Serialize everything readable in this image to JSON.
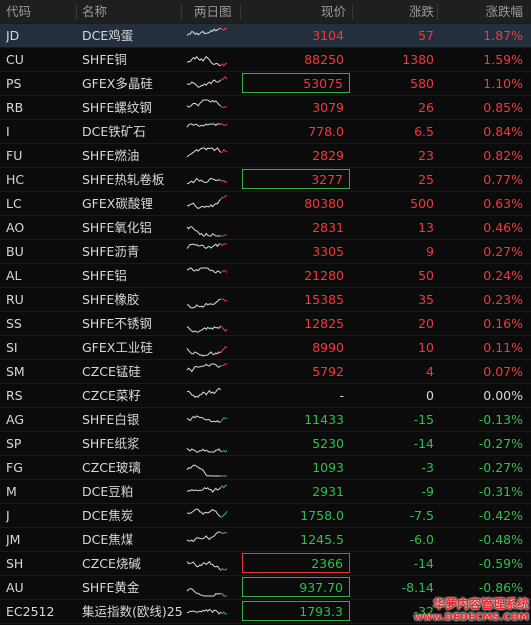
{
  "header": {
    "code": "代码",
    "name": "名称",
    "spark": "两日图",
    "price": "现价",
    "change": "涨跌",
    "pct": "涨跌幅"
  },
  "colors": {
    "up": "#f0393b",
    "down": "#2fbf4a",
    "flat": "#d8d8d8",
    "selected_row": "#232f3d"
  },
  "rows": [
    {
      "code": "JD",
      "name": "DCE鸡蛋",
      "price": "3104",
      "change": "57",
      "pct": "1.87%",
      "dir": "up",
      "selected": true
    },
    {
      "code": "CU",
      "name": "SHFE铜",
      "price": "88250",
      "change": "1380",
      "pct": "1.59%",
      "dir": "up"
    },
    {
      "code": "PS",
      "name": "GFEX多晶硅",
      "price": "53075",
      "change": "580",
      "pct": "1.10%",
      "dir": "up",
      "box": "green"
    },
    {
      "code": "RB",
      "name": "SHFE螺纹钢",
      "price": "3079",
      "change": "26",
      "pct": "0.85%",
      "dir": "up"
    },
    {
      "code": "I",
      "name": "DCE铁矿石",
      "price": "778.0",
      "change": "6.5",
      "pct": "0.84%",
      "dir": "up"
    },
    {
      "code": "FU",
      "name": "SHFE燃油",
      "price": "2829",
      "change": "23",
      "pct": "0.82%",
      "dir": "up"
    },
    {
      "code": "HC",
      "name": "SHFE热轧卷板",
      "price": "3277",
      "change": "25",
      "pct": "0.77%",
      "dir": "up",
      "box": "green"
    },
    {
      "code": "LC",
      "name": "GFEX碳酸锂",
      "price": "80380",
      "change": "500",
      "pct": "0.63%",
      "dir": "up"
    },
    {
      "code": "AO",
      "name": "SHFE氧化铝",
      "price": "2831",
      "change": "13",
      "pct": "0.46%",
      "dir": "up"
    },
    {
      "code": "BU",
      "name": "SHFE沥青",
      "price": "3305",
      "change": "9",
      "pct": "0.27%",
      "dir": "up"
    },
    {
      "code": "AL",
      "name": "SHFE铝",
      "price": "21280",
      "change": "50",
      "pct": "0.24%",
      "dir": "up"
    },
    {
      "code": "RU",
      "name": "SHFE橡胶",
      "price": "15385",
      "change": "35",
      "pct": "0.23%",
      "dir": "up"
    },
    {
      "code": "SS",
      "name": "SHFE不锈钢",
      "price": "12825",
      "change": "20",
      "pct": "0.16%",
      "dir": "up"
    },
    {
      "code": "SI",
      "name": "GFEX工业硅",
      "price": "8990",
      "change": "10",
      "pct": "0.11%",
      "dir": "up"
    },
    {
      "code": "SM",
      "name": "CZCE锰硅",
      "price": "5792",
      "change": "4",
      "pct": "0.07%",
      "dir": "up"
    },
    {
      "code": "RS",
      "name": "CZCE菜籽",
      "price": "-",
      "change": "0",
      "pct": "0.00%",
      "dir": "flat"
    },
    {
      "code": "AG",
      "name": "SHFE白银",
      "price": "11433",
      "change": "-15",
      "pct": "-0.13%",
      "dir": "down"
    },
    {
      "code": "SP",
      "name": "SHFE纸浆",
      "price": "5230",
      "change": "-14",
      "pct": "-0.27%",
      "dir": "down"
    },
    {
      "code": "FG",
      "name": "CZCE玻璃",
      "price": "1093",
      "change": "-3",
      "pct": "-0.27%",
      "dir": "down"
    },
    {
      "code": "M",
      "name": "DCE豆粕",
      "price": "2931",
      "change": "-9",
      "pct": "-0.31%",
      "dir": "down"
    },
    {
      "code": "J",
      "name": "DCE焦炭",
      "price": "1758.0",
      "change": "-7.5",
      "pct": "-0.42%",
      "dir": "down"
    },
    {
      "code": "JM",
      "name": "DCE焦煤",
      "price": "1245.5",
      "change": "-6.0",
      "pct": "-0.48%",
      "dir": "down"
    },
    {
      "code": "SH",
      "name": "CZCE烧碱",
      "price": "2366",
      "change": "-14",
      "pct": "-0.59%",
      "dir": "down",
      "box": "red"
    },
    {
      "code": "AU",
      "name": "SHFE黄金",
      "price": "937.70",
      "change": "-8.14",
      "pct": "-0.86%",
      "dir": "down",
      "box": "green"
    },
    {
      "code": "EC2512",
      "name": "集运指数(欧线)25",
      "price": "1793.3",
      "change": "-32",
      "pct": "",
      "dir": "down",
      "box": "green"
    }
  ],
  "watermark": {
    "line1": "华夢内容管理系统",
    "line2": "www.DEDECMS.COM"
  }
}
